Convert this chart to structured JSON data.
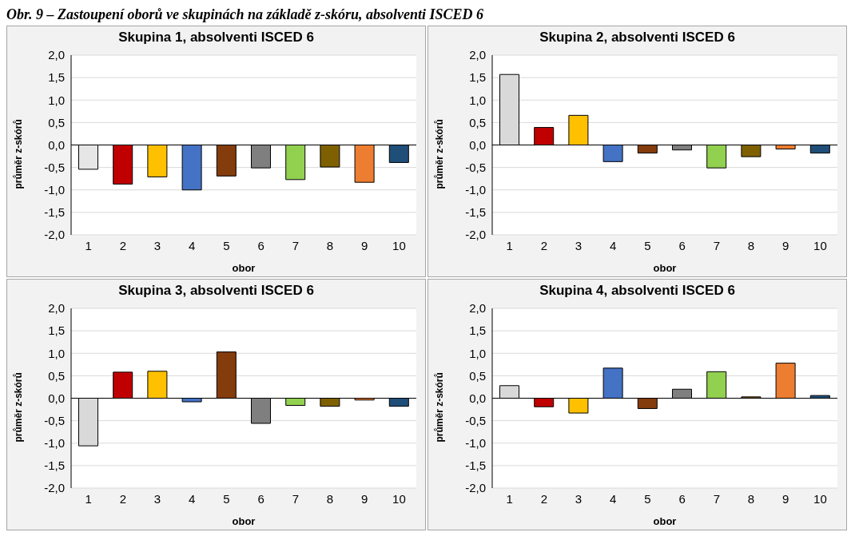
{
  "chart_data": [
    {
      "type": "bar",
      "title": "Skupina 1, absolventi ISCED 6",
      "xlabel": "obor",
      "ylabel": "průměr z-skórů",
      "annotations": [
        "Obr. 9 – Zastoupení oborů ve skupinách na základě z-skóru, absolventi ISCED 6"
      ],
      "categories": [
        "1",
        "2",
        "3",
        "4",
        "5",
        "6",
        "7",
        "8",
        "9",
        "10"
      ],
      "values": [
        -0.54,
        -0.87,
        -0.71,
        -1.0,
        -0.69,
        -0.51,
        -0.77,
        -0.49,
        -0.83,
        -0.39
      ],
      "colors": [
        "#e7e6e6",
        "#c00000",
        "#ffc000",
        "#4472c4",
        "#843c0c",
        "#7f7f7f",
        "#92d050",
        "#7f6000",
        "#ed7d31",
        "#1f4e79"
      ],
      "ylim": [
        -2,
        2
      ],
      "yticks": [
        {
          "value": -2,
          "label": "-2,0"
        },
        {
          "value": -1.5,
          "label": "-1,5"
        },
        {
          "value": -1,
          "label": "-1,0"
        },
        {
          "value": -0.5,
          "label": "-0,5"
        },
        {
          "value": 0,
          "label": "0,0"
        },
        {
          "value": 0.5,
          "label": "0,5"
        },
        {
          "value": 1,
          "label": "1,0"
        },
        {
          "value": 1.5,
          "label": "1,5"
        },
        {
          "value": 2,
          "label": "2,0"
        }
      ],
      "grid": "y"
    },
    {
      "type": "bar",
      "title": "Skupina 2, absolventi ISCED 6",
      "xlabel": "obor",
      "ylabel": "průměr z-skórů",
      "categories": [
        "1",
        "2",
        "3",
        "4",
        "5",
        "6",
        "7",
        "8",
        "9",
        "10"
      ],
      "values": [
        1.57,
        0.39,
        0.66,
        -0.37,
        -0.18,
        -0.11,
        -0.51,
        -0.26,
        -0.09,
        -0.18
      ],
      "colors": [
        "#d9d9d9",
        "#c00000",
        "#ffc000",
        "#4472c4",
        "#843c0c",
        "#7f7f7f",
        "#92d050",
        "#7f6000",
        "#ed7d31",
        "#1f4e79"
      ],
      "ylim": [
        -2,
        2
      ],
      "yticks": [
        {
          "value": -2,
          "label": "-2,0"
        },
        {
          "value": -1.5,
          "label": "-1,5"
        },
        {
          "value": -1,
          "label": "-1,0"
        },
        {
          "value": -0.5,
          "label": "-0,5"
        },
        {
          "value": 0,
          "label": "0,0"
        },
        {
          "value": 0.5,
          "label": "0,5"
        },
        {
          "value": 1,
          "label": "1,0"
        },
        {
          "value": 1.5,
          "label": "1,5"
        },
        {
          "value": 2,
          "label": "2,0"
        }
      ],
      "grid": "y"
    },
    {
      "type": "bar",
      "title": "Skupina 3, absolventi ISCED 6",
      "xlabel": "obor",
      "ylabel": "průměr z-skórů",
      "categories": [
        "1",
        "2",
        "3",
        "4",
        "5",
        "6",
        "7",
        "8",
        "9",
        "10"
      ],
      "values": [
        -1.06,
        0.58,
        0.6,
        -0.08,
        1.03,
        -0.56,
        -0.16,
        -0.18,
        -0.04,
        -0.18
      ],
      "colors": [
        "#d9d9d9",
        "#c00000",
        "#ffc000",
        "#4472c4",
        "#843c0c",
        "#7f7f7f",
        "#92d050",
        "#7f6000",
        "#ed7d31",
        "#1f4e79"
      ],
      "ylim": [
        -2,
        2
      ],
      "yticks": [
        {
          "value": -2,
          "label": "-2,0"
        },
        {
          "value": -1.5,
          "label": "-1,5"
        },
        {
          "value": -1,
          "label": "-1,0"
        },
        {
          "value": -0.5,
          "label": "-0,5"
        },
        {
          "value": 0,
          "label": "0,0"
        },
        {
          "value": 0.5,
          "label": "0,5"
        },
        {
          "value": 1,
          "label": "1,0"
        },
        {
          "value": 1.5,
          "label": "1,5"
        },
        {
          "value": 2,
          "label": "2,0"
        }
      ],
      "grid": "y"
    },
    {
      "type": "bar",
      "title": "Skupina 4, absolventi ISCED 6",
      "xlabel": "obor",
      "ylabel": "průměr z-skórů",
      "categories": [
        "1",
        "2",
        "3",
        "4",
        "5",
        "6",
        "7",
        "8",
        "9",
        "10"
      ],
      "values": [
        0.28,
        -0.19,
        -0.33,
        0.67,
        -0.23,
        0.2,
        0.59,
        0.03,
        0.78,
        0.06
      ],
      "colors": [
        "#d9d9d9",
        "#c00000",
        "#ffc000",
        "#4472c4",
        "#843c0c",
        "#7f7f7f",
        "#92d050",
        "#7f6000",
        "#ed7d31",
        "#1f4e79"
      ],
      "ylim": [
        -2,
        2
      ],
      "yticks": [
        {
          "value": -2,
          "label": "-2,0"
        },
        {
          "value": -1.5,
          "label": "-1,5"
        },
        {
          "value": -1,
          "label": "-1,0"
        },
        {
          "value": -0.5,
          "label": "-0,5"
        },
        {
          "value": 0,
          "label": "0,0"
        },
        {
          "value": 0.5,
          "label": "0,5"
        },
        {
          "value": 1,
          "label": "1,0"
        },
        {
          "value": 1.5,
          "label": "1,5"
        },
        {
          "value": 2,
          "label": "2,0"
        }
      ],
      "grid": "y"
    }
  ]
}
